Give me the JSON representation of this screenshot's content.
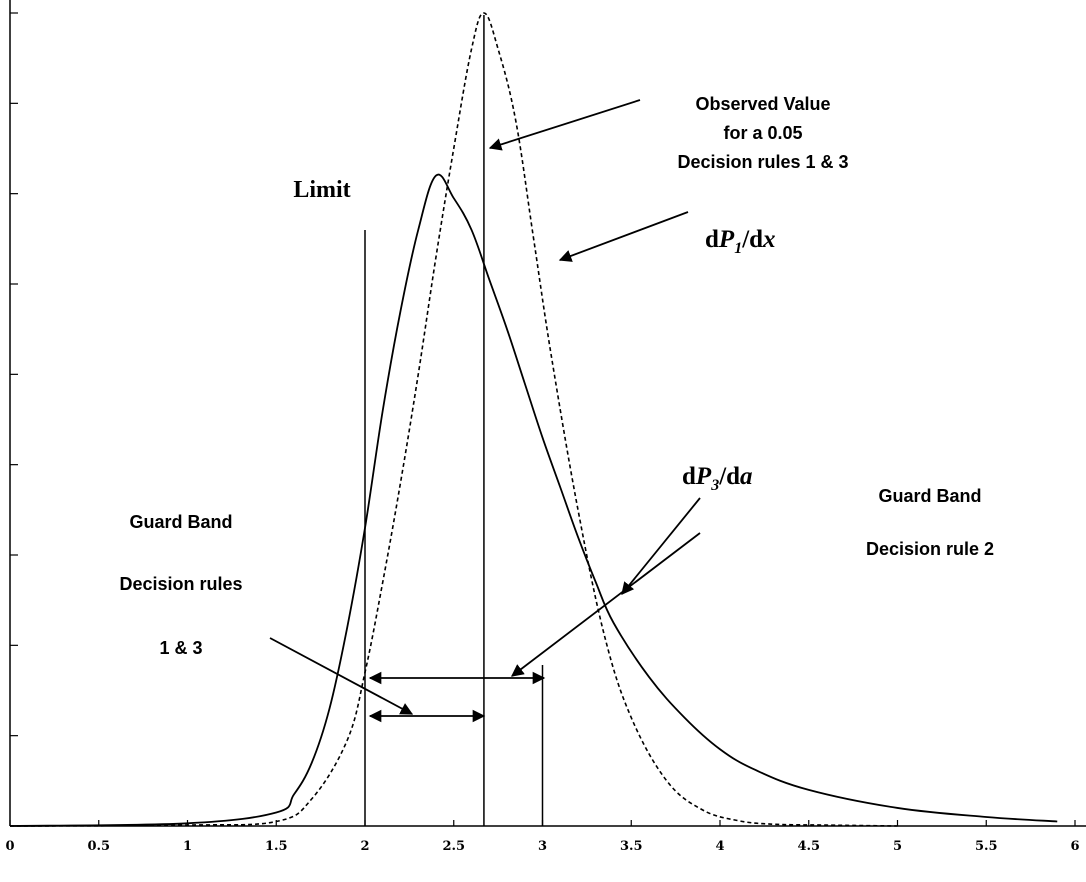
{
  "chart_data": {
    "type": "line",
    "xlim": [
      0,
      6
    ],
    "xticks": [
      "0",
      "0.5",
      "1",
      "1.5",
      "2",
      "2.5",
      "3",
      "3.5",
      "4",
      "4.5",
      "5",
      "5.5",
      "6"
    ],
    "series": [
      {
        "name": "dP1/dx",
        "style": "dashed",
        "x": [
          0,
          1,
          1.5,
          1.7,
          1.9,
          2.0,
          2.1,
          2.2,
          2.3,
          2.4,
          2.5,
          2.6,
          2.67,
          2.75,
          2.85,
          2.95,
          3.05,
          3.2,
          3.35,
          3.5,
          3.7,
          3.9,
          4.1,
          4.3,
          4.6,
          5.0
        ],
        "y": [
          0,
          0.01,
          0.05,
          0.3,
          0.95,
          1.7,
          2.7,
          3.8,
          5.0,
          6.3,
          7.5,
          8.6,
          9.0,
          8.6,
          7.8,
          6.5,
          5.2,
          3.5,
          2.1,
          1.2,
          0.5,
          0.18,
          0.06,
          0.02,
          0.01,
          0
        ]
      },
      {
        "name": "dP3/da",
        "style": "solid",
        "x": [
          0,
          1,
          1.5,
          1.6,
          1.7,
          1.8,
          1.9,
          2.0,
          2.1,
          2.2,
          2.3,
          2.4,
          2.5,
          2.6,
          2.7,
          2.8,
          2.9,
          3.0,
          3.1,
          3.2,
          3.3,
          3.4,
          3.6,
          3.8,
          4.0,
          4.2,
          4.5,
          5.0,
          5.5,
          5.9
        ],
        "y": [
          0,
          0.03,
          0.15,
          0.35,
          0.7,
          1.3,
          2.2,
          3.3,
          4.6,
          5.7,
          6.6,
          7.2,
          6.95,
          6.6,
          6.05,
          5.5,
          4.9,
          4.3,
          3.75,
          3.2,
          2.7,
          2.25,
          1.65,
          1.2,
          0.85,
          0.62,
          0.4,
          0.2,
          0.1,
          0.05
        ]
      }
    ],
    "vlines": [
      2.0,
      2.67,
      3.0
    ],
    "labels": {
      "limit": "Limit",
      "observed": [
        "Observed Value",
        "for a 0.05",
        "Decision rules 1 & 3"
      ],
      "dp1_prefix": "d",
      "dp1_var": "P",
      "dp1_sub": "1",
      "dp1_suffix": "/d",
      "dp1_var2": "x",
      "dp3_prefix": "d",
      "dp3_var": "P",
      "dp3_sub": "3",
      "dp3_suffix": "/d",
      "dp3_var2": "a",
      "guard_right": [
        "Guard Band",
        "Decision rule 2"
      ],
      "guard_left": [
        "Guard Band",
        "Decision rules",
        "1 & 3"
      ]
    }
  }
}
